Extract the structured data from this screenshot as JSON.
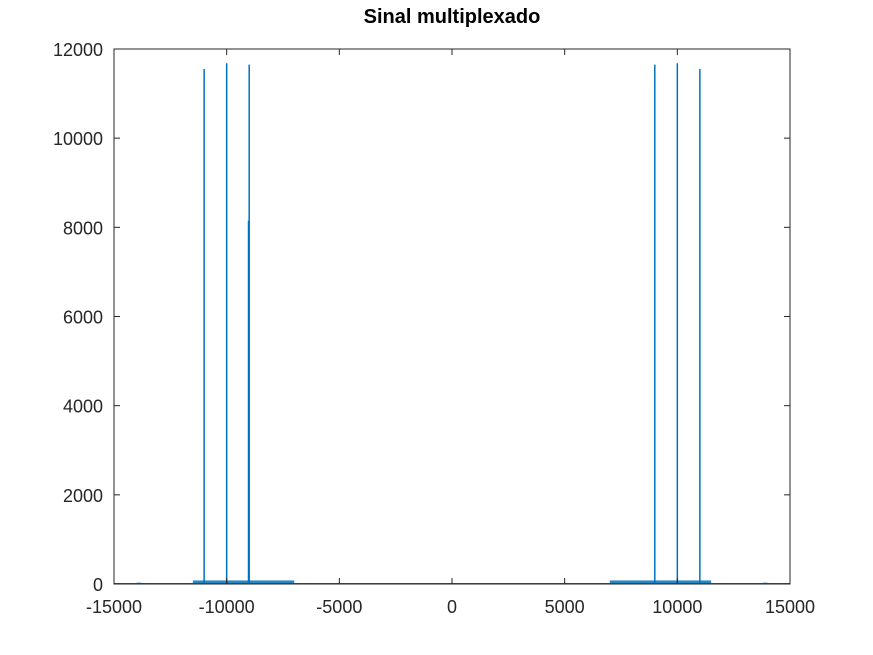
{
  "chart_data": {
    "type": "line",
    "title": "Sinal multiplexado",
    "xlabel": "",
    "ylabel": "",
    "xlim": [
      -15000,
      15000
    ],
    "ylim": [
      0,
      12000
    ],
    "xticks": [
      -15000,
      -10000,
      -5000,
      0,
      5000,
      10000,
      15000
    ],
    "yticks": [
      0,
      2000,
      4000,
      6000,
      8000,
      10000,
      12000
    ],
    "grid": false,
    "legend": "none",
    "colors": {
      "series": "#0072BD",
      "axes": "#262626"
    },
    "series": [
      {
        "peaks": [
          {
            "x": -11000,
            "y": 11550
          },
          {
            "x": -10000,
            "y": 11680
          },
          {
            "x": -9000,
            "y": 11650
          },
          {
            "x": -9030,
            "y": 8150
          },
          {
            "x": 9000,
            "y": 11650
          },
          {
            "x": 10000,
            "y": 11680
          },
          {
            "x": 11000,
            "y": 11550
          }
        ],
        "noise_bands": [
          {
            "from": -11500,
            "to": -7000,
            "level": 80
          },
          {
            "from": 7000,
            "to": 11500,
            "level": 80
          },
          {
            "from": -14000,
            "to": -13800,
            "level": 30
          },
          {
            "from": 13800,
            "to": 14000,
            "level": 30
          }
        ]
      }
    ]
  }
}
